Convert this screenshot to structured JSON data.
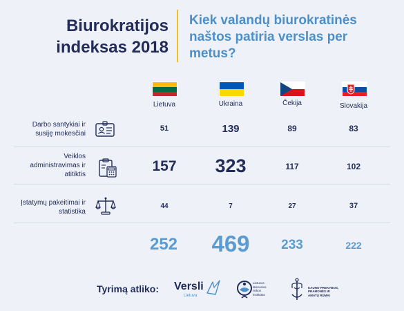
{
  "title": "Biurokratijos indeksas 2018",
  "question": "Kiek valandų biurokratinės naštos patiria verslas per metus?",
  "countries": [
    {
      "name": "Lietuva",
      "flag": [
        "#fdb913",
        "#006a44",
        "#c1272d"
      ]
    },
    {
      "name": "Ukraina",
      "flag": [
        "#0057b8",
        "#ffd700"
      ]
    },
    {
      "name": "Čekija",
      "flag": [
        "#ffffff",
        "#d7141a"
      ]
    },
    {
      "name": "Slovakija",
      "flag": [
        "#ffffff",
        "#0b4ea2",
        "#ee1c25"
      ]
    }
  ],
  "rows": [
    {
      "label_line1": "Darbo santykiai ir",
      "label_line2": "susiję mokesčiai",
      "label_line3": "",
      "icon": "id-card-icon",
      "values": [
        "51",
        "139",
        "89",
        "83"
      ]
    },
    {
      "label_line1": "Veiklos",
      "label_line2": "administravimas ir",
      "label_line3": "atitiktis",
      "icon": "calculator-clipboard-icon",
      "values": [
        "157",
        "323",
        "117",
        "102"
      ]
    },
    {
      "label_line1": "Įstatymų pakeitimai ir",
      "label_line2": "statistika",
      "label_line3": "",
      "icon": "scales-icon",
      "values": [
        "44",
        "7",
        "27",
        "37"
      ]
    }
  ],
  "totals": [
    "252",
    "469",
    "233",
    "222"
  ],
  "footer": {
    "label": "Tyrimą atliko:",
    "logo1_name": "Versli",
    "logo1_sub": "Lietuva",
    "logo2_line1": "Lietuvos",
    "logo2_line2": "laisvosios",
    "logo2_line3": "rinkos",
    "logo2_line4": "institutas",
    "logo3_line1": "KAUNO PREKYBOS,",
    "logo3_line2": "PRAMONĖS IR",
    "logo3_line3": "AMATŲ RŪMAI"
  },
  "colors": {
    "navy": "#232c58",
    "blue": "#4d8fc9",
    "accent": "#f2c21b",
    "background": "#eef2f8"
  }
}
